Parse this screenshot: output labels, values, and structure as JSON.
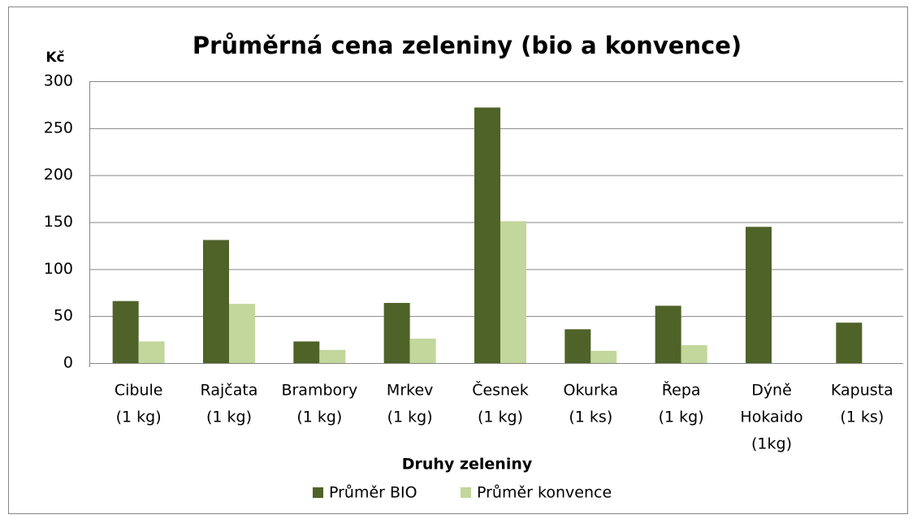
{
  "chart_data": {
    "type": "bar",
    "title": "Průměrná cena zeleniny (bio a konvence)",
    "y_label": "Kč",
    "x_label": "Druhy zeleniny",
    "categories": [
      [
        "Cibule",
        "(1 kg)"
      ],
      [
        "Rajčata",
        "(1 kg)"
      ],
      [
        "Brambory",
        "(1 kg)"
      ],
      [
        "Mrkev",
        "(1 kg)"
      ],
      [
        "Česnek",
        "(1 kg)"
      ],
      [
        "Okurka",
        "(1 ks)"
      ],
      [
        "Řepa",
        "(1 kg)"
      ],
      [
        "Dýně",
        "Hokaido",
        "(1kg)"
      ],
      [
        "Kapusta",
        "(1 ks)"
      ]
    ],
    "series": [
      {
        "name": "Průměr BIO",
        "color": "#4f6228",
        "values": [
          66,
          131,
          23,
          64,
          272,
          36,
          61,
          145,
          43
        ]
      },
      {
        "name": "Průměr konvence",
        "color": "#c3d69b",
        "values": [
          23,
          63,
          14,
          26,
          151,
          13,
          19,
          null,
          null
        ]
      }
    ],
    "ylim": [
      0,
      300
    ],
    "yticks": [
      0,
      50,
      100,
      150,
      200,
      250,
      300
    ],
    "grid": true,
    "legend": "bottom"
  }
}
